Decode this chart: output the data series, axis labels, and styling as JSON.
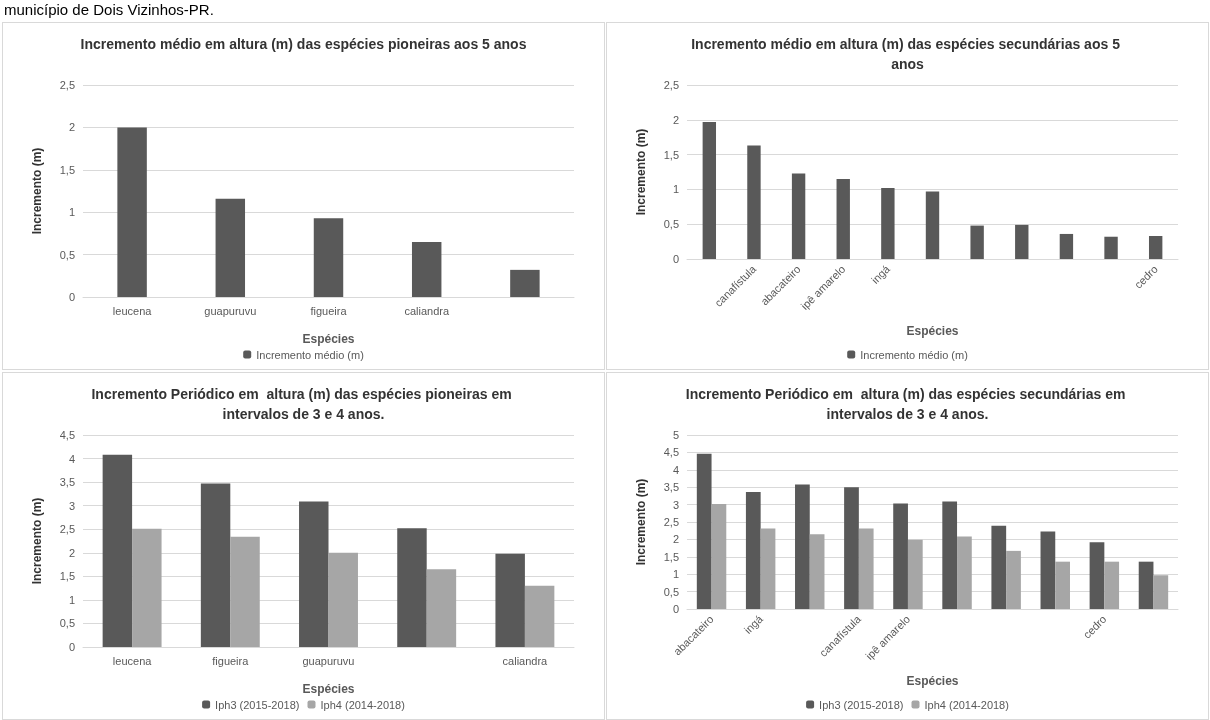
{
  "chart_data": [
    {
      "type": "bar",
      "title": "Incremento médio em altura (m) das espécies pioneiras aos 5 anos",
      "xlabel": "Espécies",
      "ylabel": "Incremento (m)",
      "annotations": [
        "município de Dois Vizinhos-PR."
      ],
      "categories": [
        "leucena",
        "guapuruvu",
        "figueira",
        "caliandra",
        null
      ],
      "series": [
        {
          "name": "Incremento médio (m)",
          "color": "#595959",
          "values": [
            2.0,
            1.16,
            0.93,
            0.65,
            0.32
          ]
        }
      ],
      "ylim": [
        0,
        2.5
      ],
      "yticks": [
        0,
        {
          "value": 0.5,
          "label": "0,5"
        },
        1,
        {
          "value": 1.5,
          "label": "1,5"
        },
        2,
        {
          "value": 2.5,
          "label": "2,5"
        }
      ],
      "grid": "y",
      "legend": "bottom"
    },
    {
      "type": "bar",
      "title": "Incremento médio em altura (m) das espécies secundárias aos 5 anos",
      "xlabel": "Espécies",
      "ylabel": "Incremento (m)",
      "categories": [
        null,
        "canafístula",
        "abacateiro",
        "ipê amarelo",
        "ingá",
        null,
        null,
        null,
        null,
        null,
        "cedro"
      ],
      "series": [
        {
          "name": "Incremento médio (m)",
          "color": "#595959",
          "values": [
            1.97,
            1.63,
            1.23,
            1.15,
            1.02,
            0.97,
            0.48,
            0.49,
            0.36,
            0.32,
            0.33
          ]
        }
      ],
      "ylim": [
        0,
        2.5
      ],
      "yticks": [
        0,
        {
          "value": 0.5,
          "label": "0,5"
        },
        1,
        {
          "value": 1.5,
          "label": "1,5"
        },
        2,
        {
          "value": 2.5,
          "label": "2,5"
        }
      ],
      "grid": "y",
      "legend": "bottom"
    },
    {
      "type": "bar",
      "title": "Incremento Periódico em  altura (m) das espécies pioneiras em intervalos de 3 e 4 anos.",
      "xlabel": "Espécies",
      "ylabel": "Incremento (m)",
      "categories": [
        "leucena",
        "figueira",
        "guapuruvu",
        null,
        "caliandra"
      ],
      "series": [
        {
          "name": "Iph3 (2015-2018)",
          "color": "#595959",
          "values": [
            4.08,
            3.47,
            3.09,
            2.52,
            1.98
          ]
        },
        {
          "name": "Iph4 (2014-2018)",
          "color": "#a6a6a6",
          "values": [
            2.51,
            2.34,
            2.0,
            1.65,
            1.3
          ]
        }
      ],
      "ylim": [
        0,
        4.5
      ],
      "yticks": [
        0,
        {
          "value": 0.5,
          "label": "0,5"
        },
        1,
        {
          "value": 1.5,
          "label": "1,5"
        },
        2,
        {
          "value": 2.5,
          "label": "2,5"
        },
        3,
        {
          "value": 3.5,
          "label": "3,5"
        },
        4,
        {
          "value": 4.5,
          "label": "4,5"
        }
      ],
      "grid": "y",
      "legend": "bottom"
    },
    {
      "type": "bar",
      "title": "Incremento Periódico em  altura (m) das espécies secundárias em intervalos de 3 e 4 anos.",
      "xlabel": "Espécies",
      "ylabel": "Incremento (m)",
      "categories": [
        "abacateiro",
        "ingá",
        null,
        "canafístula",
        "ipê amarelo",
        null,
        null,
        null,
        "cedro",
        null
      ],
      "series": [
        {
          "name": "Iph3 (2015-2018)",
          "color": "#595959",
          "values": [
            4.46,
            3.36,
            3.58,
            3.5,
            3.03,
            3.09,
            2.39,
            2.23,
            1.92,
            1.36
          ]
        },
        {
          "name": "Iph4 (2014-2018)",
          "color": "#a6a6a6",
          "values": [
            3.02,
            2.31,
            2.15,
            2.31,
            1.99,
            2.08,
            1.67,
            1.36,
            1.36,
            0.97
          ]
        }
      ],
      "ylim": [
        0,
        5
      ],
      "yticks": [
        0,
        {
          "value": 0.5,
          "label": "0,5"
        },
        1,
        {
          "value": 1.5,
          "label": "1,5"
        },
        2,
        {
          "value": 2.5,
          "label": "2,5"
        },
        3,
        {
          "value": 3.5,
          "label": "3,5"
        },
        4,
        {
          "value": 4.5,
          "label": "4,5"
        },
        5
      ],
      "grid": "y",
      "legend": "bottom"
    }
  ]
}
